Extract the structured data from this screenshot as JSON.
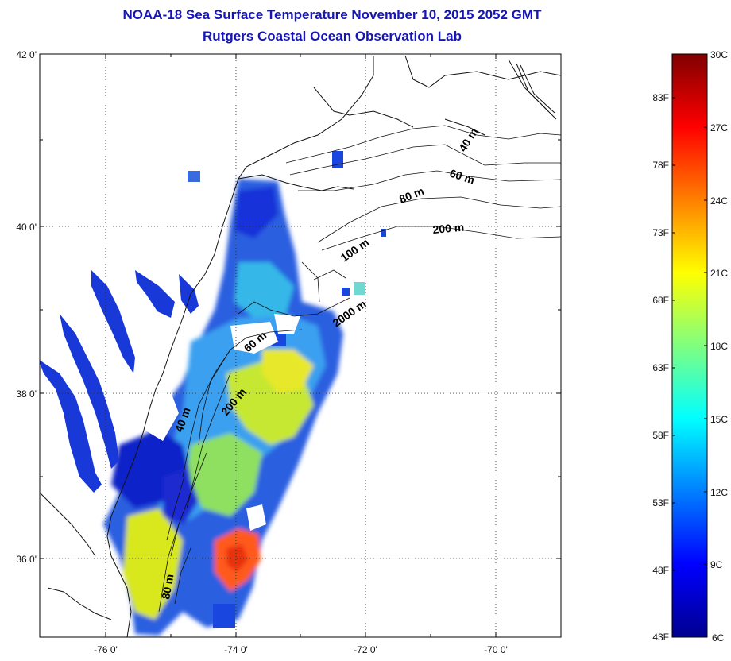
{
  "title": {
    "line1": "NOAA-18 Sea Surface Temperature November 10, 2015 2052 GMT",
    "line2": "Rutgers Coastal Ocean Observation Lab"
  },
  "map": {
    "lat_labels": [
      "42 0'",
      "40 0'",
      "38 0'",
      "36 0'"
    ],
    "lon_labels": [
      "-76 0'",
      "-74 0'",
      "-72 0'",
      "-70 0'"
    ],
    "grid": "dotted",
    "contour_labels": [
      "40 m",
      "60 m",
      "80 m",
      "200 m",
      "100 m",
      "2000 m",
      "60 m",
      "200 m",
      "40 m",
      "80 m"
    ]
  },
  "colorbar": {
    "fahrenheit_labels": [
      "83F",
      "78F",
      "73F",
      "68F",
      "63F",
      "58F",
      "53F",
      "48F",
      "43F"
    ],
    "celsius_labels": [
      "30C",
      "27C",
      "24C",
      "21C",
      "18C",
      "15C",
      "12C",
      "9C",
      "6C"
    ],
    "range_c": [
      6,
      30
    ],
    "colormap": "jet"
  }
}
